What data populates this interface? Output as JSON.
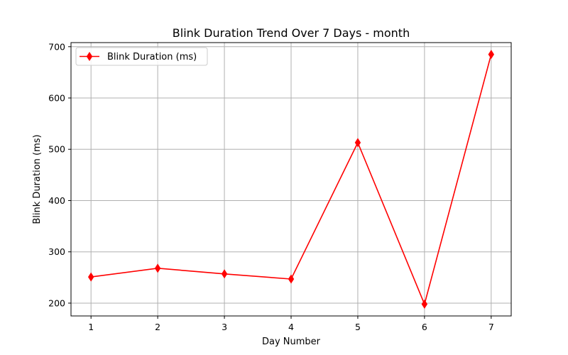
{
  "chart_data": {
    "type": "line",
    "title": "Blink Duration Trend Over 7 Days - month",
    "xlabel": "Day Number",
    "ylabel": "Blink Duration (ms)",
    "x": [
      1,
      2,
      3,
      4,
      5,
      6,
      7
    ],
    "x_ticks": [
      "1",
      "2",
      "3",
      "4",
      "5",
      "6",
      "7"
    ],
    "y_ticks": [
      "200",
      "300",
      "400",
      "500",
      "600",
      "700"
    ],
    "xlim": [
      0.7,
      7.3
    ],
    "ylim": [
      175,
      708
    ],
    "grid": true,
    "legend_placement": "top-left",
    "series": [
      {
        "name": "Blink Duration (ms)",
        "color": "#ff0000",
        "marker": "thin-diamond",
        "values": [
          251,
          268,
          257,
          247,
          513,
          198,
          685
        ]
      }
    ]
  }
}
